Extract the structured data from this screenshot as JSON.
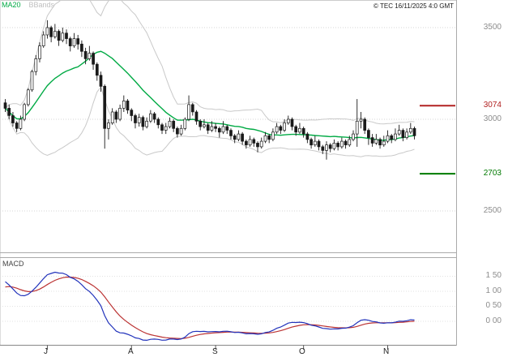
{
  "header": {
    "legend_ma20": "MA20",
    "legend_bbands": "BBands",
    "copyright": "© TEC 16/11/2025 4:0 GMT"
  },
  "chart_data": {
    "type": "candlestick",
    "title": "",
    "price_panel": {
      "ylim": [
        2420,
        3620
      ],
      "gridlines": [
        3500,
        3000,
        2500
      ],
      "axis_labels": [
        "3500",
        "3000",
        "2500"
      ],
      "axis_color": "#8c8c8c",
      "overlays": [
        "MA20",
        "BBands"
      ],
      "ma20_color": "#00aa44",
      "bbands_color": "#c9c9c9",
      "levels": [
        {
          "label": "3074",
          "value": 3074,
          "color": "#b22222"
        },
        {
          "label": "2703",
          "value": 2703,
          "color": "#007a00"
        }
      ],
      "candles_ohlc": [
        [
          3090,
          3110,
          3040,
          3060
        ],
        [
          3060,
          3080,
          3000,
          3020
        ],
        [
          3020,
          3040,
          2960,
          2980
        ],
        [
          2980,
          2990,
          2930,
          2950
        ],
        [
          2950,
          3020,
          2940,
          3000
        ],
        [
          3000,
          3090,
          2990,
          3080
        ],
        [
          3080,
          3170,
          3070,
          3160
        ],
        [
          3160,
          3270,
          3150,
          3260
        ],
        [
          3260,
          3350,
          3240,
          3330
        ],
        [
          3330,
          3420,
          3310,
          3400
        ],
        [
          3400,
          3480,
          3390,
          3460
        ],
        [
          3460,
          3540,
          3440,
          3500
        ],
        [
          3500,
          3510,
          3420,
          3450
        ],
        [
          3450,
          3520,
          3440,
          3480
        ],
        [
          3480,
          3490,
          3400,
          3430
        ],
        [
          3430,
          3500,
          3420,
          3470
        ],
        [
          3470,
          3490,
          3410,
          3440
        ],
        [
          3440,
          3450,
          3370,
          3400
        ],
        [
          3400,
          3470,
          3390,
          3440
        ],
        [
          3440,
          3460,
          3380,
          3410
        ],
        [
          3410,
          3430,
          3340,
          3370
        ],
        [
          3370,
          3390,
          3300,
          3330
        ],
        [
          3330,
          3400,
          3320,
          3360
        ],
        [
          3360,
          3370,
          3270,
          3300
        ],
        [
          3300,
          3310,
          3210,
          3240
        ],
        [
          3240,
          3260,
          3150,
          3180
        ],
        [
          3180,
          3190,
          2840,
          2950
        ],
        [
          2950,
          3000,
          2890,
          2980
        ],
        [
          2980,
          3060,
          2970,
          3040
        ],
        [
          3040,
          3050,
          2980,
          3000
        ],
        [
          3000,
          3080,
          2990,
          3060
        ],
        [
          3060,
          3130,
          3040,
          3100
        ],
        [
          3100,
          3110,
          3030,
          3050
        ],
        [
          3050,
          3060,
          2990,
          3020
        ],
        [
          3020,
          3030,
          2950,
          2980
        ],
        [
          2980,
          3030,
          2960,
          3010
        ],
        [
          3010,
          3020,
          2940,
          2960
        ],
        [
          2960,
          3010,
          2950,
          2990
        ],
        [
          2990,
          3050,
          2980,
          3030
        ],
        [
          3030,
          3040,
          2980,
          3000
        ],
        [
          3000,
          3010,
          2950,
          2970
        ],
        [
          2970,
          2980,
          2920,
          2940
        ],
        [
          2940,
          2980,
          2920,
          2960
        ],
        [
          2960,
          3010,
          2950,
          2990
        ],
        [
          2990,
          3000,
          2930,
          2950
        ],
        [
          2950,
          2960,
          2900,
          2920
        ],
        [
          2920,
          2970,
          2910,
          2950
        ],
        [
          2950,
          3010,
          2940,
          3000
        ],
        [
          3000,
          3130,
          2990,
          3080
        ],
        [
          3080,
          3090,
          3020,
          3040
        ],
        [
          3040,
          3050,
          2970,
          2990
        ],
        [
          2990,
          3000,
          2940,
          2960
        ],
        [
          2960,
          3000,
          2950,
          2970
        ],
        [
          2970,
          2980,
          2920,
          2940
        ],
        [
          2940,
          2990,
          2930,
          2960
        ],
        [
          2960,
          2980,
          2930,
          2950
        ],
        [
          2950,
          2960,
          2900,
          2930
        ],
        [
          2930,
          2990,
          2920,
          2960
        ],
        [
          2960,
          2970,
          2920,
          2940
        ],
        [
          2940,
          2950,
          2890,
          2910
        ],
        [
          2910,
          2920,
          2870,
          2890
        ],
        [
          2890,
          2940,
          2880,
          2920
        ],
        [
          2920,
          2930,
          2860,
          2880
        ],
        [
          2880,
          2890,
          2840,
          2860
        ],
        [
          2860,
          2910,
          2850,
          2890
        ],
        [
          2890,
          2900,
          2850,
          2870
        ],
        [
          2870,
          2880,
          2820,
          2850
        ],
        [
          2850,
          2900,
          2840,
          2880
        ],
        [
          2880,
          2930,
          2870,
          2910
        ],
        [
          2910,
          2920,
          2870,
          2890
        ],
        [
          2890,
          2950,
          2880,
          2930
        ],
        [
          2930,
          2980,
          2920,
          2960
        ],
        [
          2960,
          2970,
          2920,
          2940
        ],
        [
          2940,
          3000,
          2930,
          2980
        ],
        [
          2980,
          3020,
          2970,
          3000
        ],
        [
          3000,
          3010,
          2940,
          2960
        ],
        [
          2960,
          2970,
          2910,
          2930
        ],
        [
          2930,
          2980,
          2920,
          2950
        ],
        [
          2950,
          2960,
          2900,
          2920
        ],
        [
          2920,
          2930,
          2870,
          2890
        ],
        [
          2890,
          2900,
          2840,
          2860
        ],
        [
          2860,
          2910,
          2850,
          2880
        ],
        [
          2880,
          2890,
          2830,
          2850
        ],
        [
          2850,
          2860,
          2810,
          2830
        ],
        [
          2830,
          2880,
          2780,
          2860
        ],
        [
          2860,
          2870,
          2820,
          2840
        ],
        [
          2840,
          2890,
          2830,
          2870
        ],
        [
          2870,
          2880,
          2830,
          2850
        ],
        [
          2850,
          2900,
          2840,
          2880
        ],
        [
          2880,
          2890,
          2840,
          2860
        ],
        [
          2860,
          2910,
          2850,
          2890
        ],
        [
          2890,
          2940,
          2880,
          2920
        ],
        [
          2920,
          3110,
          2850,
          2990
        ],
        [
          2990,
          3040,
          2950,
          3000
        ],
        [
          3000,
          3010,
          2920,
          2940
        ],
        [
          2940,
          2950,
          2860,
          2900
        ],
        [
          2900,
          2920,
          2850,
          2870
        ],
        [
          2870,
          2920,
          2860,
          2890
        ],
        [
          2890,
          2900,
          2840,
          2860
        ],
        [
          2860,
          2910,
          2850,
          2880
        ],
        [
          2880,
          2940,
          2870,
          2910
        ],
        [
          2910,
          2920,
          2870,
          2890
        ],
        [
          2890,
          2950,
          2880,
          2920
        ],
        [
          2920,
          2970,
          2910,
          2940
        ],
        [
          2940,
          2950,
          2880,
          2900
        ],
        [
          2900,
          2950,
          2890,
          2930
        ],
        [
          2930,
          2980,
          2920,
          2950
        ],
        [
          2950,
          2960,
          2890,
          2910
        ]
      ]
    },
    "macd_panel": {
      "type": "line",
      "label": "MACD",
      "ylim": [
        -75,
        210
      ],
      "gridlines": [
        150,
        100,
        50,
        0
      ],
      "axis_labels": [
        "1 50",
        "1 00",
        "0 50",
        "0 00"
      ],
      "macd_color": "#2233bb",
      "signal_color": "#bb3333"
    },
    "x_axis": {
      "month_labels": [
        "J",
        "A",
        "S",
        "O",
        "N"
      ],
      "month_tick_indices": [
        11,
        33,
        55,
        78,
        100
      ]
    },
    "legend_position": "top-left",
    "grid": true
  }
}
